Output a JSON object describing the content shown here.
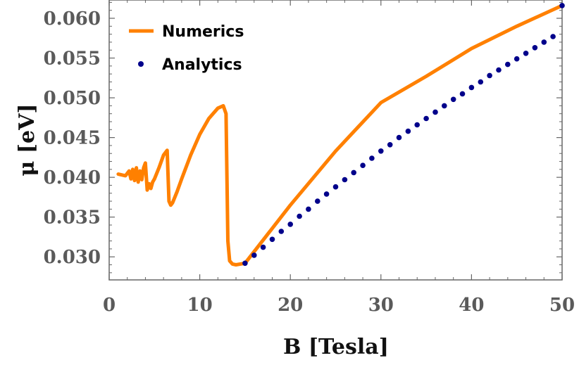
{
  "chart_data": {
    "type": "line",
    "xlabel": "B [Tesla]",
    "ylabel": "μ [eV]",
    "xlim": [
      0,
      50
    ],
    "ylim": [
      0.0271,
      0.0623
    ],
    "x_ticks": [
      0,
      10,
      20,
      30,
      40,
      50
    ],
    "x_tick_labels": [
      "0",
      "10",
      "20",
      "30",
      "40",
      "50"
    ],
    "y_ticks": [
      0.03,
      0.035,
      0.04,
      0.045,
      0.05,
      0.055,
      0.06
    ],
    "y_tick_labels": [
      "0.030",
      "0.035",
      "0.040",
      "0.045",
      "0.050",
      "0.055",
      "0.060"
    ],
    "legend_position": "top-left",
    "grid": false,
    "series": [
      {
        "name": "Numerics",
        "type": "line",
        "color": "#ff8000",
        "x": [
          1.0,
          1.8,
          2.2,
          2.4,
          2.6,
          2.8,
          3.0,
          3.2,
          3.4,
          3.6,
          3.8,
          4.0,
          4.2,
          4.4,
          4.6,
          4.8,
          5.0,
          5.5,
          6.0,
          6.4,
          6.6,
          6.8,
          7.0,
          7.5,
          8.0,
          9.0,
          10.0,
          11.0,
          12.0,
          12.6,
          12.9,
          13.0,
          13.1,
          13.3,
          13.6,
          14.0,
          15.0,
          20.0,
          25.0,
          30.0,
          35.0,
          40.0,
          45.0,
          50.0
        ],
        "y": [
          0.0404,
          0.0402,
          0.0408,
          0.0398,
          0.041,
          0.0396,
          0.0412,
          0.0394,
          0.0408,
          0.0397,
          0.0412,
          0.0418,
          0.0384,
          0.0392,
          0.0386,
          0.0394,
          0.0398,
          0.0412,
          0.0428,
          0.0434,
          0.037,
          0.0365,
          0.0368,
          0.0382,
          0.0398,
          0.0428,
          0.0454,
          0.0474,
          0.0487,
          0.049,
          0.048,
          0.04,
          0.032,
          0.0295,
          0.0291,
          0.029,
          0.0292,
          0.0365,
          0.0433,
          0.0494,
          0.0527,
          0.0562,
          0.059,
          0.0616
        ]
      },
      {
        "name": "Analytics",
        "type": "scatter",
        "color": "#00008b",
        "x": [
          15.0,
          16.0,
          17.0,
          18.0,
          19.0,
          20.0,
          21.0,
          22.0,
          23.0,
          24.0,
          25.0,
          26.0,
          27.0,
          28.0,
          29.0,
          30.0,
          31.0,
          32.0,
          33.0,
          34.0,
          35.0,
          36.0,
          37.0,
          38.0,
          39.0,
          40.0,
          41.0,
          42.0,
          43.0,
          44.0,
          45.0,
          46.0,
          47.0,
          48.0,
          49.0,
          50.0
        ],
        "y": [
          0.0292,
          0.0302,
          0.0312,
          0.0322,
          0.0332,
          0.0341,
          0.0351,
          0.036,
          0.037,
          0.0379,
          0.0388,
          0.0397,
          0.0406,
          0.0415,
          0.0424,
          0.0433,
          0.0441,
          0.045,
          0.0458,
          0.0466,
          0.0474,
          0.0482,
          0.049,
          0.0498,
          0.0505,
          0.0513,
          0.052,
          0.0528,
          0.0535,
          0.0542,
          0.0549,
          0.0556,
          0.0563,
          0.057,
          0.0577,
          0.0616
        ]
      }
    ]
  }
}
